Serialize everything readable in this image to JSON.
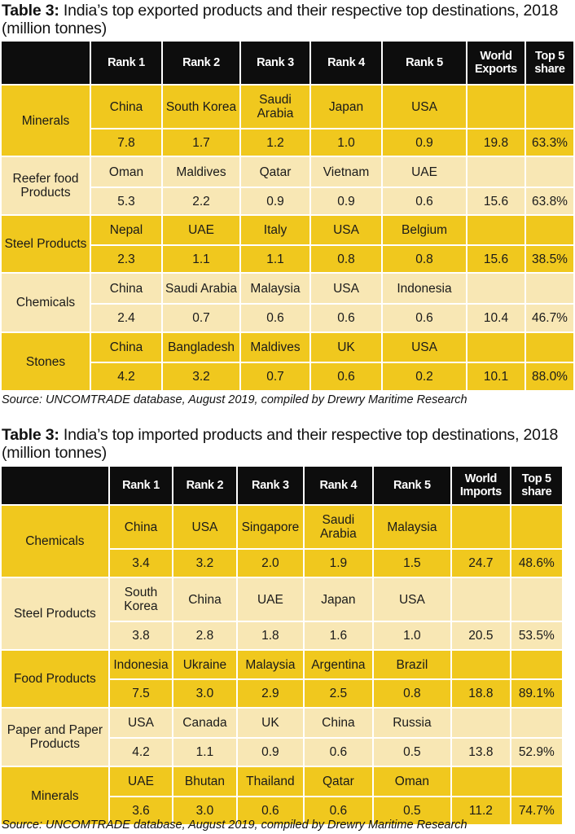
{
  "exports": {
    "title_bold": "Table 3:",
    "title_rest": " India’s top exported products and their respective top destinations, 2018 (million tonnes)",
    "headers": [
      "",
      "Rank 1",
      "Rank 2",
      "Rank 3",
      "Rank 4",
      "Rank 5",
      "World Exports",
      "Top 5 share"
    ],
    "rows": [
      {
        "product": "Minerals",
        "countries": [
          "China",
          "South Korea",
          "Saudi Arabia",
          "Japan",
          "USA"
        ],
        "values": [
          "7.8",
          "1.7",
          "1.2",
          "1.0",
          "0.9"
        ],
        "world": "19.8",
        "share": "63.3%"
      },
      {
        "product": "Reefer food Products",
        "countries": [
          "Oman",
          "Maldives",
          "Qatar",
          "Vietnam",
          "UAE"
        ],
        "values": [
          "5.3",
          "2.2",
          "0.9",
          "0.9",
          "0.6"
        ],
        "world": "15.6",
        "share": "63.8%"
      },
      {
        "product": "Steel Products",
        "countries": [
          "Nepal",
          "UAE",
          "Italy",
          "USA",
          "Belgium"
        ],
        "values": [
          "2.3",
          "1.1",
          "1.1",
          "0.8",
          "0.8"
        ],
        "world": "15.6",
        "share": "38.5%"
      },
      {
        "product": "Chemicals",
        "countries": [
          "China",
          "Saudi Arabia",
          "Malaysia",
          "USA",
          "Indonesia"
        ],
        "values": [
          "2.4",
          "0.7",
          "0.6",
          "0.6",
          "0.6"
        ],
        "world": "10.4",
        "share": "46.7%"
      },
      {
        "product": "Stones",
        "countries": [
          "China",
          "Bangladesh",
          "Maldives",
          "UK",
          "USA"
        ],
        "values": [
          "4.2",
          "3.2",
          "0.7",
          "0.6",
          "0.2"
        ],
        "world": "10.1",
        "share": "88.0%"
      }
    ],
    "source": "Source: UNCOMTRADE database, August 2019, compiled by Drewry Maritime Research"
  },
  "imports": {
    "title_bold": "Table 3:",
    "title_rest": " India’s top imported products and their respective top destinations, 2018 (million tonnes)",
    "headers": [
      "",
      "Rank 1",
      "Rank 2",
      "Rank 3",
      "Rank 4",
      "Rank 5",
      "World Imports",
      "Top 5 share"
    ],
    "rows": [
      {
        "product": "Chemicals",
        "countries": [
          "China",
          "USA",
          "Singapore",
          "Saudi Arabia",
          "Malaysia"
        ],
        "values": [
          "3.4",
          "3.2",
          "2.0",
          "1.9",
          "1.5"
        ],
        "world": "24.7",
        "share": "48.6%"
      },
      {
        "product": "Steel Products",
        "countries": [
          "South Korea",
          "China",
          "UAE",
          "Japan",
          "USA"
        ],
        "values": [
          "3.8",
          "2.8",
          "1.8",
          "1.6",
          "1.0"
        ],
        "world": "20.5",
        "share": "53.5%"
      },
      {
        "product": "Food Products",
        "countries": [
          "Indonesia",
          "Ukraine",
          "Malaysia",
          "Argentina",
          "Brazil"
        ],
        "values": [
          "7.5",
          "3.0",
          "2.9",
          "2.5",
          "0.8"
        ],
        "world": "18.8",
        "share": "89.1%"
      },
      {
        "product": "Paper and Paper Products",
        "countries": [
          "USA",
          "Canada",
          "UK",
          "China",
          "Russia"
        ],
        "values": [
          "4.2",
          "1.1",
          "0.9",
          "0.6",
          "0.5"
        ],
        "world": "13.8",
        "share": "52.9%"
      },
      {
        "product": "Minerals",
        "countries": [
          "UAE",
          "Bhutan",
          "Thailand",
          "Qatar",
          "Oman"
        ],
        "values": [
          "3.6",
          "3.0",
          "0.6",
          "0.6",
          "0.5"
        ],
        "world": "11.2",
        "share": "74.7%"
      }
    ],
    "source": "Source: UNCOMTRADE database, August 2019, compiled by Drewry Maritime Research"
  }
}
